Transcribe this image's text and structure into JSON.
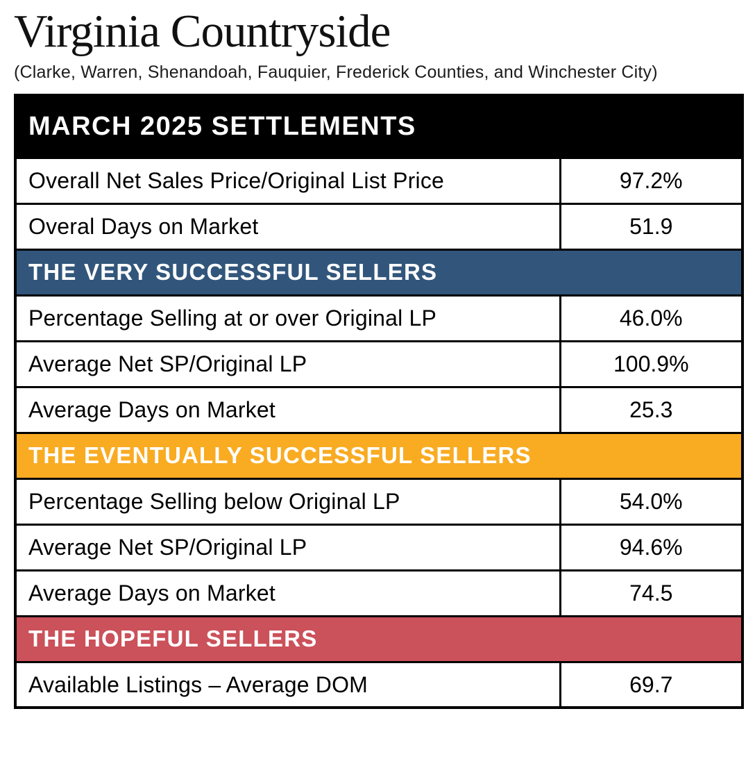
{
  "page": {
    "title": "Virginia Countryside",
    "subtitle": "(Clarke, Warren, Shenandoah, Fauquier, Frederick Counties, and Winchester City)"
  },
  "chart_data": {
    "type": "table",
    "title": "MARCH 2025 SETTLEMENTS",
    "sections": [
      {
        "header": "",
        "header_bg": "",
        "rows": [
          {
            "label": "Overall Net Sales Price/Original List Price",
            "value": "97.2%"
          },
          {
            "label": "Overal Days on Market",
            "value": "51.9"
          }
        ]
      },
      {
        "header": "THE VERY SUCCESSFUL SELLERS",
        "header_bg": "#32567B",
        "rows": [
          {
            "label": "Percentage Selling at or over Original LP",
            "value": "46.0%"
          },
          {
            "label": "Average Net SP/Original LP",
            "value": "100.9%"
          },
          {
            "label": "Average Days on Market",
            "value": "25.3"
          }
        ]
      },
      {
        "header": "THE EVENTUALLY SUCCESSFUL SELLERS",
        "header_bg": "#F9AB22",
        "rows": [
          {
            "label": "Percentage Selling below Original LP",
            "value": "54.0%"
          },
          {
            "label": "Average Net SP/Original LP",
            "value": "94.6%"
          },
          {
            "label": "Average Days on Market",
            "value": "74.5"
          }
        ]
      },
      {
        "header": "THE HOPEFUL SELLERS",
        "header_bg": "#CB515A",
        "rows": [
          {
            "label": "Available Listings – Average DOM",
            "value": "69.7"
          }
        ]
      }
    ],
    "colors": {
      "main_header_bg": "#000000",
      "header_text": "#FFFFFF",
      "border": "#000000",
      "row_bg": "#FFFFFF",
      "row_text": "#000000"
    }
  }
}
